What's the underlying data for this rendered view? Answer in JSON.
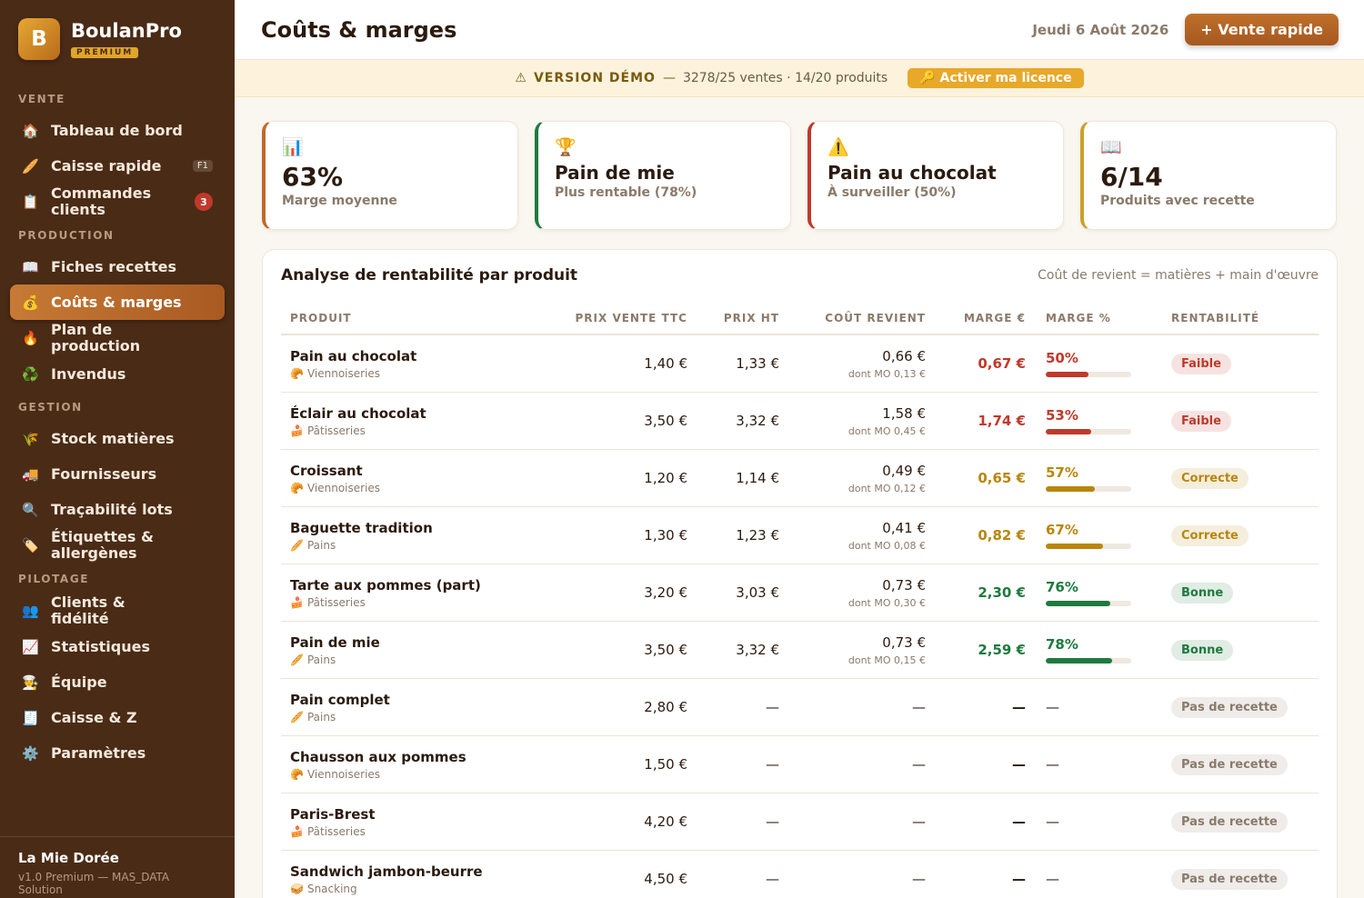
{
  "sidebar": {
    "logo": "B",
    "brand": "BoulanPro",
    "plan": "PREMIUM",
    "sections": [
      {
        "title": "VENTE",
        "items": [
          {
            "icon": "🏠",
            "label": "Tableau de bord"
          },
          {
            "icon": "🥖",
            "label": "Caisse rapide",
            "shortcut": "F1"
          },
          {
            "icon": "📋",
            "label": "Commandes clients",
            "badge": "3"
          }
        ]
      },
      {
        "title": "PRODUCTION",
        "items": [
          {
            "icon": "📖",
            "label": "Fiches recettes"
          },
          {
            "icon": "💰",
            "label": "Coûts & marges",
            "active": true
          },
          {
            "icon": "🔥",
            "label": "Plan de production"
          },
          {
            "icon": "♻️",
            "label": "Invendus"
          }
        ]
      },
      {
        "title": "GESTION",
        "items": [
          {
            "icon": "🌾",
            "label": "Stock matières"
          },
          {
            "icon": "🚚",
            "label": "Fournisseurs"
          },
          {
            "icon": "🔍",
            "label": "Traçabilité lots"
          },
          {
            "icon": "🏷️",
            "label": "Étiquettes & allergènes"
          }
        ]
      },
      {
        "title": "PILOTAGE",
        "items": [
          {
            "icon": "👥",
            "label": "Clients & fidélité"
          },
          {
            "icon": "📈",
            "label": "Statistiques"
          },
          {
            "icon": "🧑‍🍳",
            "label": "Équipe"
          },
          {
            "icon": "🧾",
            "label": "Caisse & Z"
          },
          {
            "icon": "⚙️",
            "label": "Paramètres"
          }
        ]
      }
    ],
    "footer": {
      "shop": "La Mie Dorée",
      "version": "v1.0 Premium — MAS_DATA Solution"
    }
  },
  "header": {
    "title": "Coûts & marges",
    "date": "Jeudi 6 Août 2026",
    "action": "+ Vente rapide"
  },
  "banner": {
    "icon": "⚠",
    "label": "VERSION DÉMO",
    "separator": "—",
    "usage": "3278/25 ventes · 14/20 produits",
    "action": "🔑 Activer ma licence"
  },
  "kpis": [
    {
      "icon": "📊",
      "value": "63%",
      "label": "Marge moyenne",
      "color": "#c0692b"
    },
    {
      "icon": "🏆",
      "title": "Pain de mie",
      "label": "Plus rentable (78%)",
      "color": "#1e7a3e"
    },
    {
      "icon": "⚠️",
      "title": "Pain au chocolat",
      "label": "À surveiller (50%)",
      "color": "#c0392b"
    },
    {
      "icon": "📖",
      "value": "6/14",
      "label": "Produits avec recette",
      "color": "#c9a227"
    }
  ],
  "table": {
    "title": "Analyse de rentabilité par produit",
    "note": "Coût de revient = matières + main d'œuvre",
    "columns": [
      "PRODUIT",
      "PRIX VENTE TTC",
      "PRIX HT",
      "COÛT REVIENT",
      "MARGE €",
      "MARGE %",
      "RENTABILITÉ"
    ],
    "rows": [
      {
        "product": "Pain au chocolat",
        "category_icon": "🥐",
        "category": "Viennoiseries",
        "price_ttc": "1,40 €",
        "price_ht": "1,33 €",
        "cost": "0,66 €",
        "cost_mo": "dont MO 0,13 €",
        "margin": "0,67 €",
        "margin_pct": {
          "value": 50,
          "label": "50%"
        },
        "rating": "Faible",
        "color": "#c0392b"
      },
      {
        "product": "Éclair au chocolat",
        "category_icon": "🍰",
        "category": "Pâtisseries",
        "price_ttc": "3,50 €",
        "price_ht": "3,32 €",
        "cost": "1,58 €",
        "cost_mo": "dont MO 0,45 €",
        "margin": "1,74 €",
        "margin_pct": {
          "value": 53,
          "label": "53%"
        },
        "rating": "Faible",
        "color": "#c0392b"
      },
      {
        "product": "Croissant",
        "category_icon": "🥐",
        "category": "Viennoiseries",
        "price_ttc": "1,20 €",
        "price_ht": "1,14 €",
        "cost": "0,49 €",
        "cost_mo": "dont MO 0,12 €",
        "margin": "0,65 €",
        "margin_pct": {
          "value": 57,
          "label": "57%"
        },
        "rating": "Correcte",
        "color": "#b8860b"
      },
      {
        "product": "Baguette tradition",
        "category_icon": "🥖",
        "category": "Pains",
        "price_ttc": "1,30 €",
        "price_ht": "1,23 €",
        "cost": "0,41 €",
        "cost_mo": "dont MO 0,08 €",
        "margin": "0,82 €",
        "margin_pct": {
          "value": 67,
          "label": "67%"
        },
        "rating": "Correcte",
        "color": "#b8860b"
      },
      {
        "product": "Tarte aux pommes (part)",
        "category_icon": "🍰",
        "category": "Pâtisseries",
        "price_ttc": "3,20 €",
        "price_ht": "3,03 €",
        "cost": "0,73 €",
        "cost_mo": "dont MO 0,30 €",
        "margin": "2,30 €",
        "margin_pct": {
          "value": 76,
          "label": "76%"
        },
        "rating": "Bonne",
        "color": "#1e7a3e"
      },
      {
        "product": "Pain de mie",
        "category_icon": "🥖",
        "category": "Pains",
        "price_ttc": "3,50 €",
        "price_ht": "3,32 €",
        "cost": "0,73 €",
        "cost_mo": "dont MO 0,15 €",
        "margin": "2,59 €",
        "margin_pct": {
          "value": 78,
          "label": "78%"
        },
        "rating": "Bonne",
        "color": "#1e7a3e"
      },
      {
        "product": "Pain complet",
        "category_icon": "🥖",
        "category": "Pains",
        "price_ttc": "2,80 €",
        "price_ht": "—",
        "cost": "—",
        "margin": "—",
        "margin_pct": "—",
        "rating": "Pas de recette",
        "color": "#8a7a6a"
      },
      {
        "product": "Chausson aux pommes",
        "category_icon": "🥐",
        "category": "Viennoiseries",
        "price_ttc": "1,50 €",
        "price_ht": "—",
        "cost": "—",
        "margin": "—",
        "margin_pct": "—",
        "rating": "Pas de recette",
        "color": "#8a7a6a"
      },
      {
        "product": "Paris-Brest",
        "category_icon": "🍰",
        "category": "Pâtisseries",
        "price_ttc": "4,20 €",
        "price_ht": "—",
        "cost": "—",
        "margin": "—",
        "margin_pct": "—",
        "rating": "Pas de recette",
        "color": "#8a7a6a"
      },
      {
        "product": "Sandwich jambon-beurre",
        "category_icon": "🥪",
        "category": "Snacking",
        "price_ttc": "4,50 €",
        "price_ht": "—",
        "cost": "—",
        "margin": "—",
        "margin_pct": "—",
        "rating": "Pas de recette",
        "color": "#8a7a6a"
      }
    ]
  }
}
